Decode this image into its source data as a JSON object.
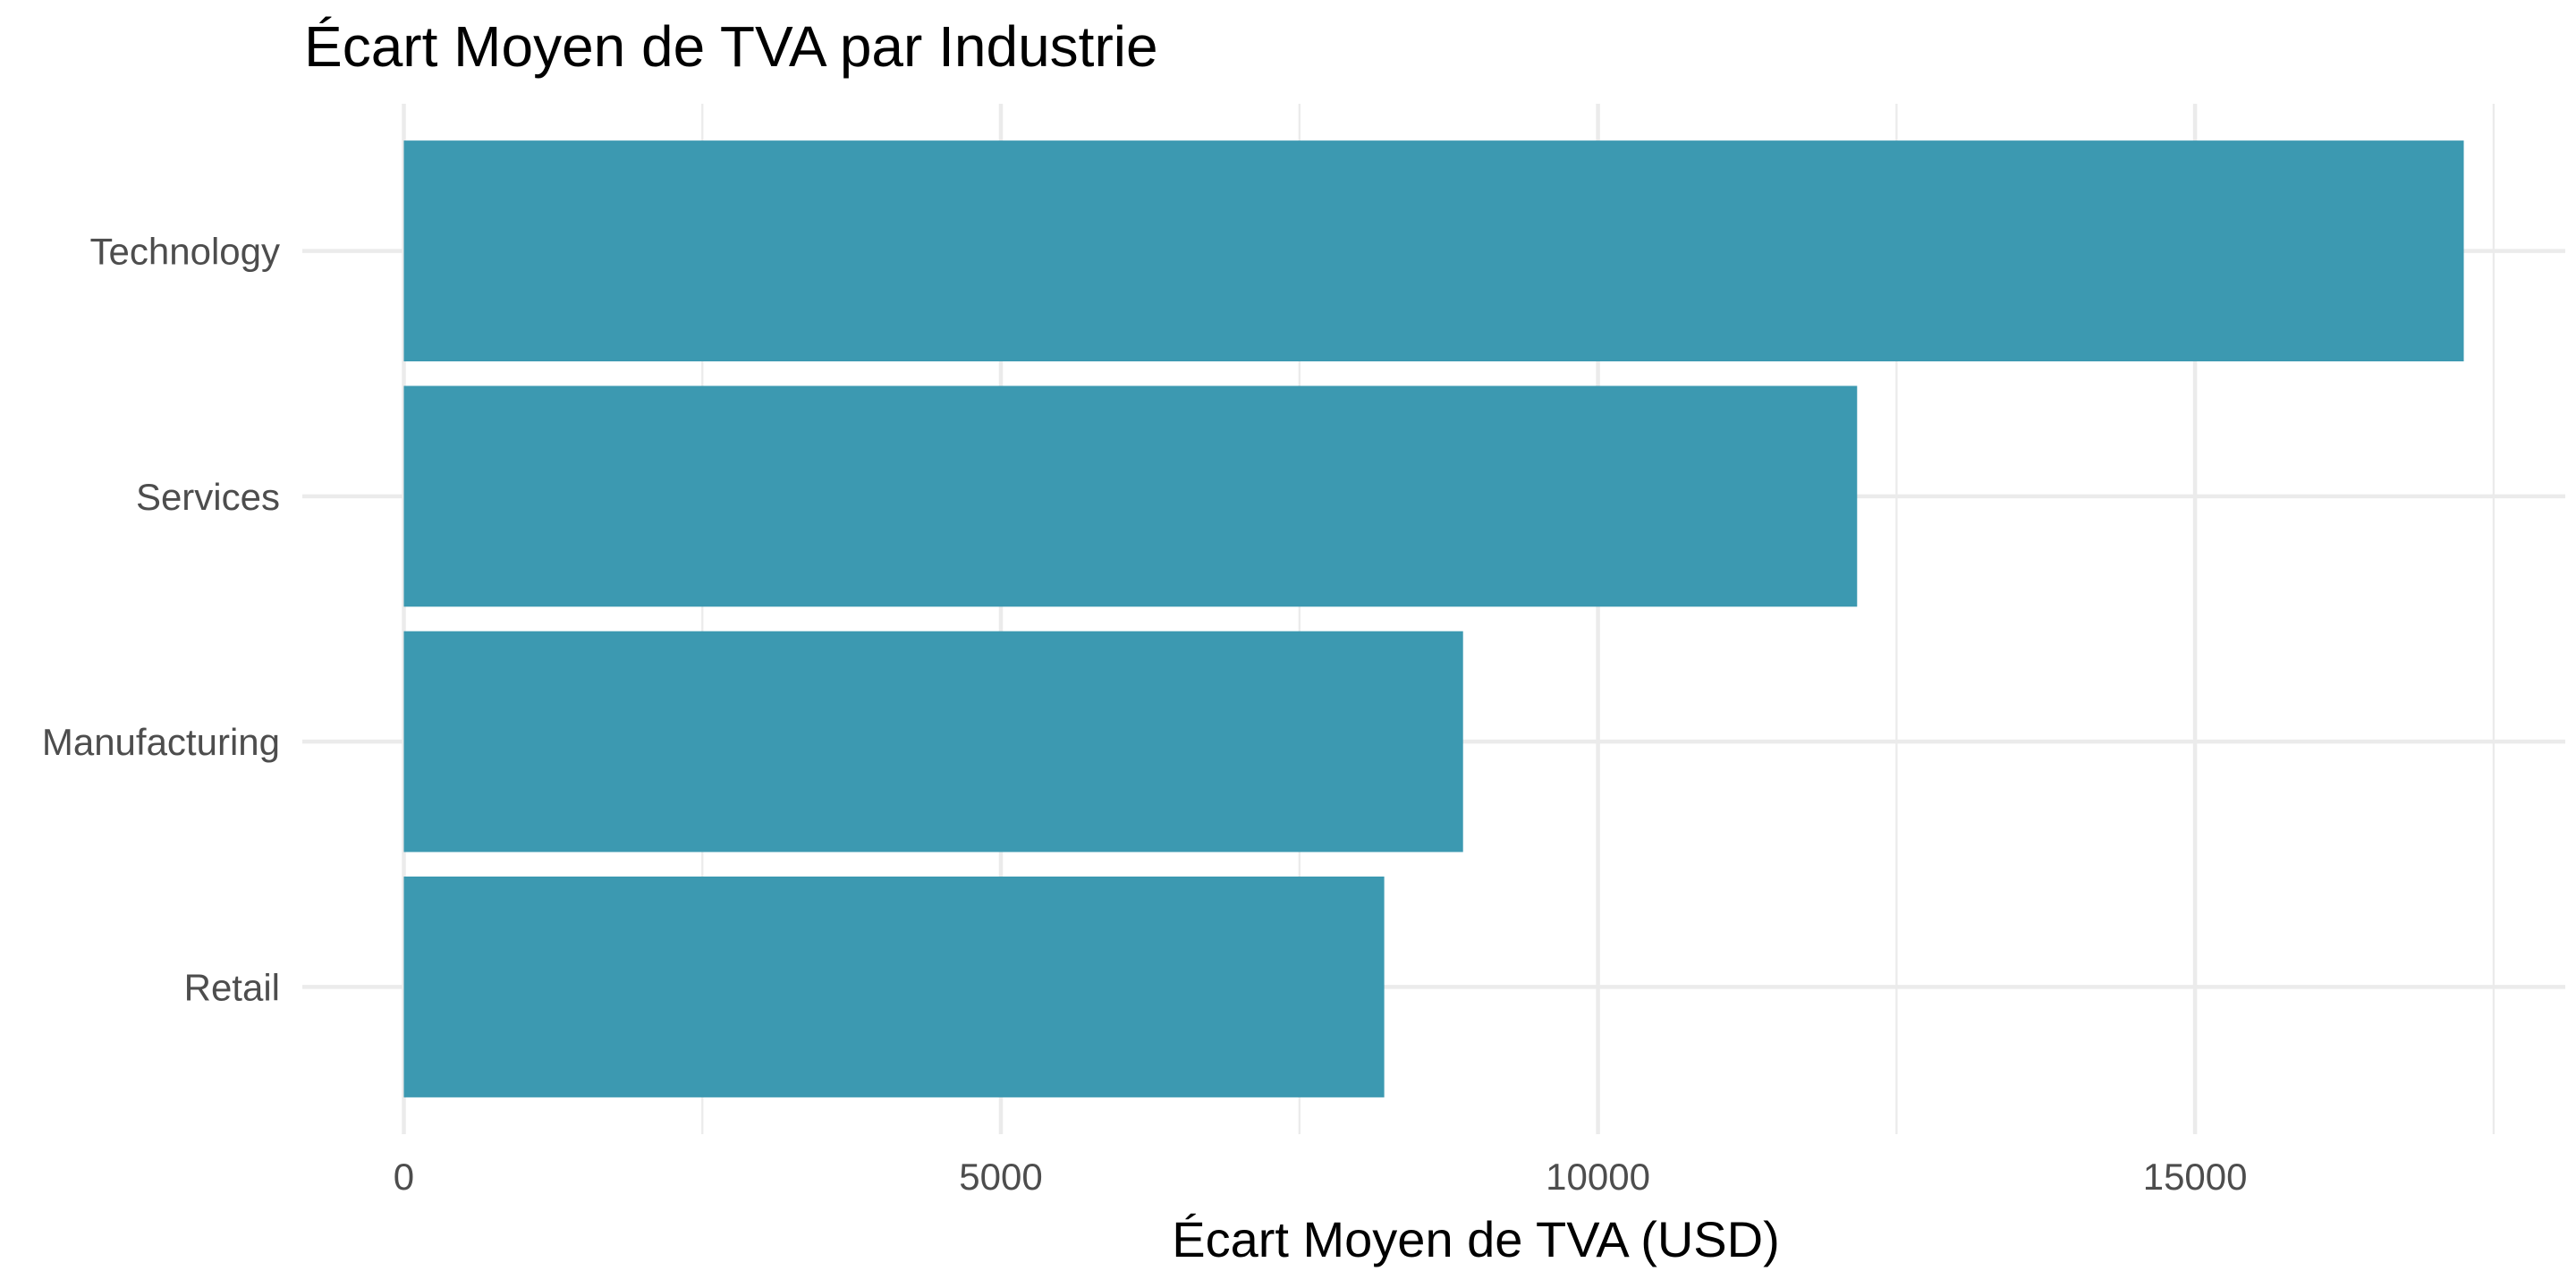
{
  "chart_data": {
    "type": "bar",
    "orientation": "horizontal",
    "title": "Écart Moyen de TVA par Industrie",
    "xlabel": "Écart Moyen de TVA (USD)",
    "ylabel": "",
    "categories": [
      "Technology",
      "Services",
      "Manufacturing",
      "Retail"
    ],
    "values": [
      17250,
      12170,
      8870,
      8210
    ],
    "xlim": [
      -850,
      18100
    ],
    "xticks": [
      0,
      5000,
      10000,
      15000
    ],
    "xtick_labels": [
      "0",
      "5000",
      "10000",
      "15000"
    ],
    "grid": true,
    "legend": "none",
    "bar_color": "#3C99B1"
  }
}
